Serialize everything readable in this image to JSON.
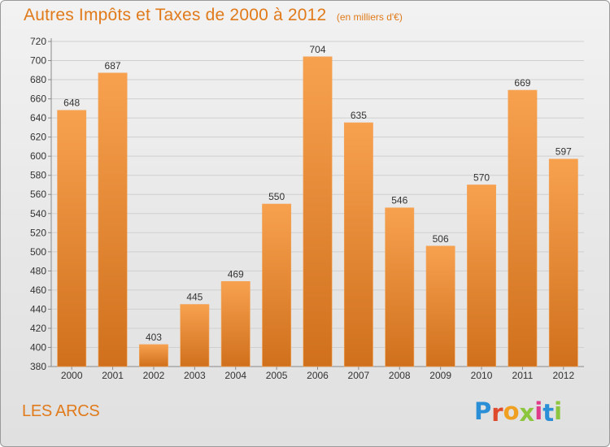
{
  "header": {
    "title": "Autres Impôts et Taxes de 2000 à 2012",
    "subtitle": "(en milliers d'€)"
  },
  "footer": {
    "commune": "LES ARCS",
    "logo_text": "Proxiti"
  },
  "colors": {
    "accent": "#e07a1a",
    "bar_top": "#f7a14f",
    "bar_bottom": "#d0701c",
    "logo_letters": [
      "#2a8fd6",
      "#e04a2c",
      "#f0a020",
      "#8cc63f",
      "#e03a8a",
      "#2a8fd6",
      "#8cc63f"
    ]
  },
  "chart_data": {
    "type": "bar",
    "title": "Autres Impôts et Taxes de 2000 à 2012",
    "subtitle": "(en milliers d'€)",
    "categories": [
      "2000",
      "2001",
      "2002",
      "2003",
      "2004",
      "2005",
      "2006",
      "2007",
      "2008",
      "2009",
      "2010",
      "2011",
      "2012"
    ],
    "values": [
      648,
      687,
      403,
      445,
      469,
      550,
      704,
      635,
      546,
      506,
      570,
      669,
      597
    ],
    "ylim": [
      380,
      720
    ],
    "yticks": [
      380,
      400,
      420,
      440,
      460,
      480,
      500,
      520,
      540,
      560,
      580,
      600,
      620,
      640,
      660,
      680,
      700,
      720
    ],
    "xlabel": "",
    "ylabel": "",
    "grid": true,
    "legend": "none"
  }
}
